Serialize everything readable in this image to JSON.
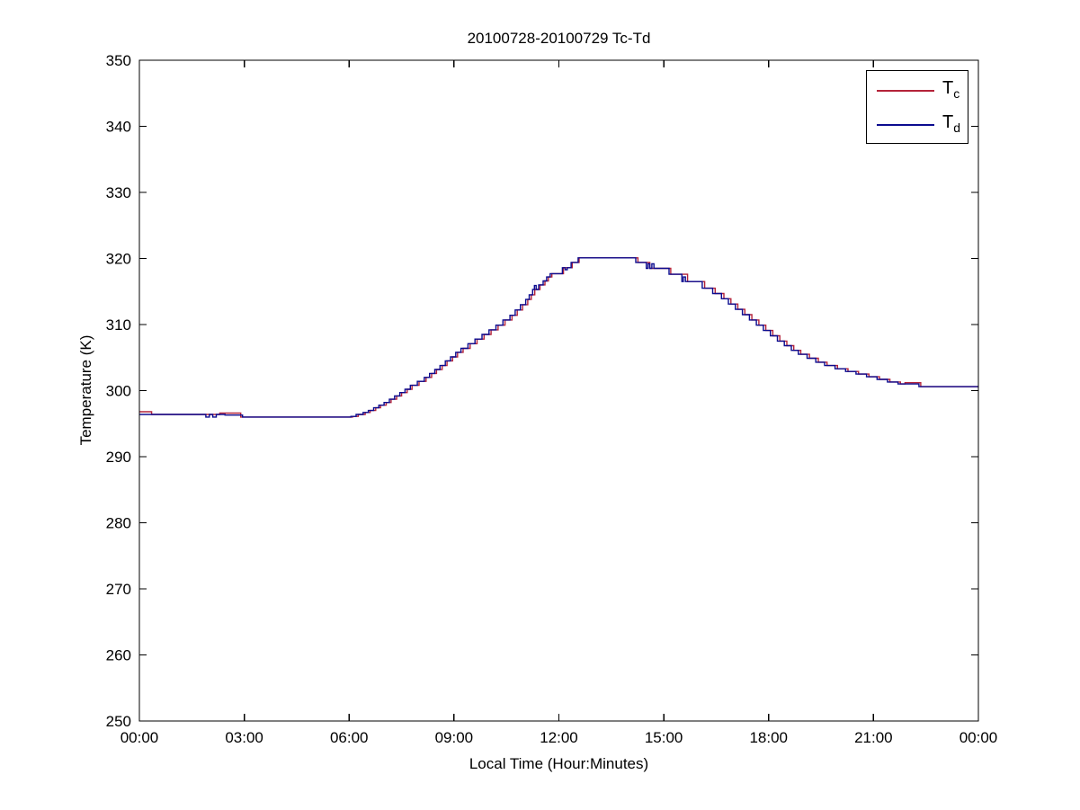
{
  "figure": {
    "title": "20100728-20100729 Tc-Td",
    "xlabel": "Local Time (Hour:Minutes)",
    "ylabel": "Temperature (K)",
    "background_color": "#ffffff",
    "axis_color": "#000000"
  },
  "legend": {
    "position": "top-right",
    "entries": [
      {
        "main": "T",
        "sub": "c",
        "color": "#b4233a"
      },
      {
        "main": "T",
        "sub": "d",
        "color": "#0b0b8f"
      }
    ]
  },
  "chart_data": {
    "type": "line",
    "title": "20100728-20100729 Tc-Td",
    "xlabel": "Local Time (Hour:Minutes)",
    "ylabel": "Temperature (K)",
    "grid": false,
    "legend_position": "top-right",
    "step_interpolation": "post",
    "xlim_hours": [
      0,
      24
    ],
    "ylim": [
      250,
      350
    ],
    "x_tick_labels": [
      "00:00",
      "03:00",
      "06:00",
      "09:00",
      "12:00",
      "15:00",
      "18:00",
      "21:00",
      "00:00"
    ],
    "y_tick_labels": [
      "250",
      "260",
      "270",
      "280",
      "290",
      "300",
      "310",
      "320",
      "330",
      "340",
      "350"
    ],
    "series": [
      {
        "name": "Tc",
        "color": "#b4233a",
        "points": [
          [
            0,
            296.8
          ],
          [
            0.35,
            296.4
          ],
          [
            2.3,
            296.6
          ],
          [
            2.9,
            296.0
          ],
          [
            6.1,
            296.1
          ],
          [
            6.26,
            296.4
          ],
          [
            6.46,
            296.7
          ],
          [
            6.6,
            297.0
          ],
          [
            6.76,
            297.4
          ],
          [
            6.9,
            297.8
          ],
          [
            7.06,
            298.2
          ],
          [
            7.2,
            298.7
          ],
          [
            7.36,
            299.2
          ],
          [
            7.5,
            299.7
          ],
          [
            7.66,
            300.2
          ],
          [
            7.8,
            300.8
          ],
          [
            8.0,
            301.4
          ],
          [
            8.2,
            302.0
          ],
          [
            8.36,
            302.6
          ],
          [
            8.5,
            303.2
          ],
          [
            8.66,
            303.8
          ],
          [
            8.8,
            304.5
          ],
          [
            8.96,
            305.1
          ],
          [
            9.1,
            305.8
          ],
          [
            9.26,
            306.4
          ],
          [
            9.46,
            307.1
          ],
          [
            9.66,
            307.8
          ],
          [
            9.86,
            308.5
          ],
          [
            10.06,
            309.2
          ],
          [
            10.26,
            309.9
          ],
          [
            10.46,
            310.7
          ],
          [
            10.66,
            311.4
          ],
          [
            10.81,
            312.2
          ],
          [
            10.96,
            313.0
          ],
          [
            11.11,
            313.8
          ],
          [
            11.21,
            314.5
          ],
          [
            11.31,
            315.3
          ],
          [
            11.46,
            316.0
          ],
          [
            11.6,
            316.6
          ],
          [
            11.7,
            317.2
          ],
          [
            11.8,
            317.7
          ],
          [
            12.13,
            318.6
          ],
          [
            12.38,
            319.4
          ],
          [
            12.58,
            320.1
          ],
          [
            14.26,
            319.4
          ],
          [
            14.6,
            318.5
          ],
          [
            15.2,
            317.6
          ],
          [
            15.68,
            316.5
          ],
          [
            16.17,
            315.5
          ],
          [
            16.47,
            314.7
          ],
          [
            16.72,
            313.9
          ],
          [
            16.92,
            313.1
          ],
          [
            17.12,
            312.3
          ],
          [
            17.32,
            311.5
          ],
          [
            17.52,
            310.7
          ],
          [
            17.72,
            309.9
          ],
          [
            17.92,
            309.1
          ],
          [
            18.12,
            308.3
          ],
          [
            18.32,
            307.5
          ],
          [
            18.52,
            306.8
          ],
          [
            18.72,
            306.1
          ],
          [
            18.92,
            305.5
          ],
          [
            19.17,
            304.9
          ],
          [
            19.42,
            304.3
          ],
          [
            19.67,
            303.8
          ],
          [
            19.97,
            303.3
          ],
          [
            20.27,
            302.9
          ],
          [
            20.57,
            302.5
          ],
          [
            20.87,
            302.1
          ],
          [
            21.17,
            301.7
          ],
          [
            21.47,
            301.3
          ],
          [
            21.77,
            301.0
          ],
          [
            21.9,
            301.2
          ],
          [
            22.35,
            300.6
          ],
          [
            24,
            300.6
          ]
        ]
      },
      {
        "name": "Td",
        "color": "#0b0b8f",
        "points": [
          [
            0,
            296.4
          ],
          [
            1.9,
            296.0
          ],
          [
            2.0,
            296.4
          ],
          [
            2.1,
            296.0
          ],
          [
            2.2,
            296.4
          ],
          [
            2.45,
            296.3
          ],
          [
            2.95,
            296.0
          ],
          [
            6.05,
            296.1
          ],
          [
            6.2,
            296.4
          ],
          [
            6.4,
            296.7
          ],
          [
            6.55,
            297.0
          ],
          [
            6.7,
            297.4
          ],
          [
            6.85,
            297.8
          ],
          [
            7.0,
            298.2
          ],
          [
            7.15,
            298.7
          ],
          [
            7.3,
            299.2
          ],
          [
            7.45,
            299.7
          ],
          [
            7.6,
            300.2
          ],
          [
            7.75,
            300.8
          ],
          [
            7.95,
            301.4
          ],
          [
            8.15,
            302.0
          ],
          [
            8.3,
            302.6
          ],
          [
            8.45,
            303.2
          ],
          [
            8.6,
            303.8
          ],
          [
            8.75,
            304.5
          ],
          [
            8.9,
            305.1
          ],
          [
            9.05,
            305.8
          ],
          [
            9.2,
            306.4
          ],
          [
            9.4,
            307.1
          ],
          [
            9.6,
            307.8
          ],
          [
            9.8,
            308.5
          ],
          [
            10.0,
            309.2
          ],
          [
            10.2,
            309.9
          ],
          [
            10.4,
            310.7
          ],
          [
            10.6,
            311.4
          ],
          [
            10.75,
            312.2
          ],
          [
            10.9,
            313.0
          ],
          [
            11.05,
            313.8
          ],
          [
            11.15,
            314.5
          ],
          [
            11.25,
            315.3
          ],
          [
            11.3,
            315.9
          ],
          [
            11.35,
            315.3
          ],
          [
            11.42,
            316.0
          ],
          [
            11.55,
            316.6
          ],
          [
            11.65,
            317.2
          ],
          [
            11.75,
            317.7
          ],
          [
            12.1,
            318.6
          ],
          [
            12.18,
            318.3
          ],
          [
            12.24,
            318.6
          ],
          [
            12.35,
            319.4
          ],
          [
            12.55,
            320.1
          ],
          [
            14.2,
            319.4
          ],
          [
            14.5,
            318.5
          ],
          [
            14.55,
            319.2
          ],
          [
            14.6,
            318.5
          ],
          [
            14.66,
            319.2
          ],
          [
            14.72,
            318.5
          ],
          [
            15.15,
            317.6
          ],
          [
            15.52,
            316.5
          ],
          [
            15.56,
            317.2
          ],
          [
            15.62,
            316.5
          ],
          [
            16.1,
            315.5
          ],
          [
            16.4,
            314.7
          ],
          [
            16.65,
            313.9
          ],
          [
            16.85,
            313.1
          ],
          [
            17.05,
            312.3
          ],
          [
            17.25,
            311.5
          ],
          [
            17.45,
            310.7
          ],
          [
            17.65,
            309.9
          ],
          [
            17.85,
            309.1
          ],
          [
            18.05,
            308.3
          ],
          [
            18.25,
            307.5
          ],
          [
            18.45,
            306.8
          ],
          [
            18.65,
            306.1
          ],
          [
            18.85,
            305.5
          ],
          [
            19.1,
            304.9
          ],
          [
            19.35,
            304.3
          ],
          [
            19.6,
            303.8
          ],
          [
            19.9,
            303.3
          ],
          [
            20.2,
            302.9
          ],
          [
            20.5,
            302.5
          ],
          [
            20.8,
            302.1
          ],
          [
            21.1,
            301.7
          ],
          [
            21.4,
            301.3
          ],
          [
            21.7,
            301.0
          ],
          [
            22.3,
            300.6
          ],
          [
            24,
            300.6
          ]
        ]
      }
    ]
  }
}
